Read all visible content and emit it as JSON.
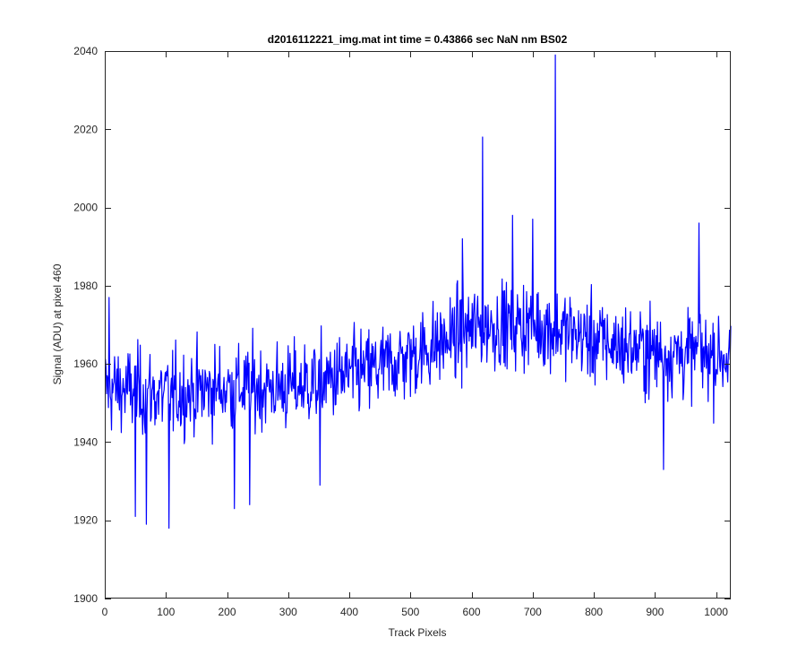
{
  "chart_data": {
    "type": "line",
    "title": "d2016112221_img.mat int time = 0.43866 sec  NaN nm BS02",
    "xlabel": "Track Pixels",
    "ylabel": "Signal (ADU) at pixel 460",
    "xlim": [
      0,
      1024
    ],
    "ylim": [
      1900,
      2040
    ],
    "xticks": [
      0,
      100,
      200,
      300,
      400,
      500,
      600,
      700,
      800,
      900,
      1000
    ],
    "yticks": [
      1900,
      1920,
      1940,
      1960,
      1980,
      2000,
      2020,
      2040
    ],
    "grid": false,
    "series_color": "#0000ff",
    "trend": {
      "x": [
        0,
        100,
        200,
        300,
        400,
        450,
        500,
        560,
        600,
        640,
        700,
        740,
        800,
        900,
        1024
      ],
      "y": [
        1954,
        1952,
        1954,
        1954,
        1957,
        1959,
        1962,
        1966,
        1969,
        1970,
        1970,
        1969,
        1966,
        1963,
        1962
      ]
    },
    "noise_amplitude": 5.5,
    "extremes": [
      {
        "x": 7,
        "y": 1977
      },
      {
        "x": 50,
        "y": 1921
      },
      {
        "x": 68,
        "y": 1919
      },
      {
        "x": 105,
        "y": 1918
      },
      {
        "x": 212,
        "y": 1923
      },
      {
        "x": 237,
        "y": 1924
      },
      {
        "x": 352,
        "y": 1929
      },
      {
        "x": 585,
        "y": 1992
      },
      {
        "x": 618,
        "y": 2018
      },
      {
        "x": 667,
        "y": 1998
      },
      {
        "x": 700,
        "y": 1997
      },
      {
        "x": 737,
        "y": 2039
      },
      {
        "x": 914,
        "y": 1933
      },
      {
        "x": 972,
        "y": 1996
      }
    ]
  }
}
